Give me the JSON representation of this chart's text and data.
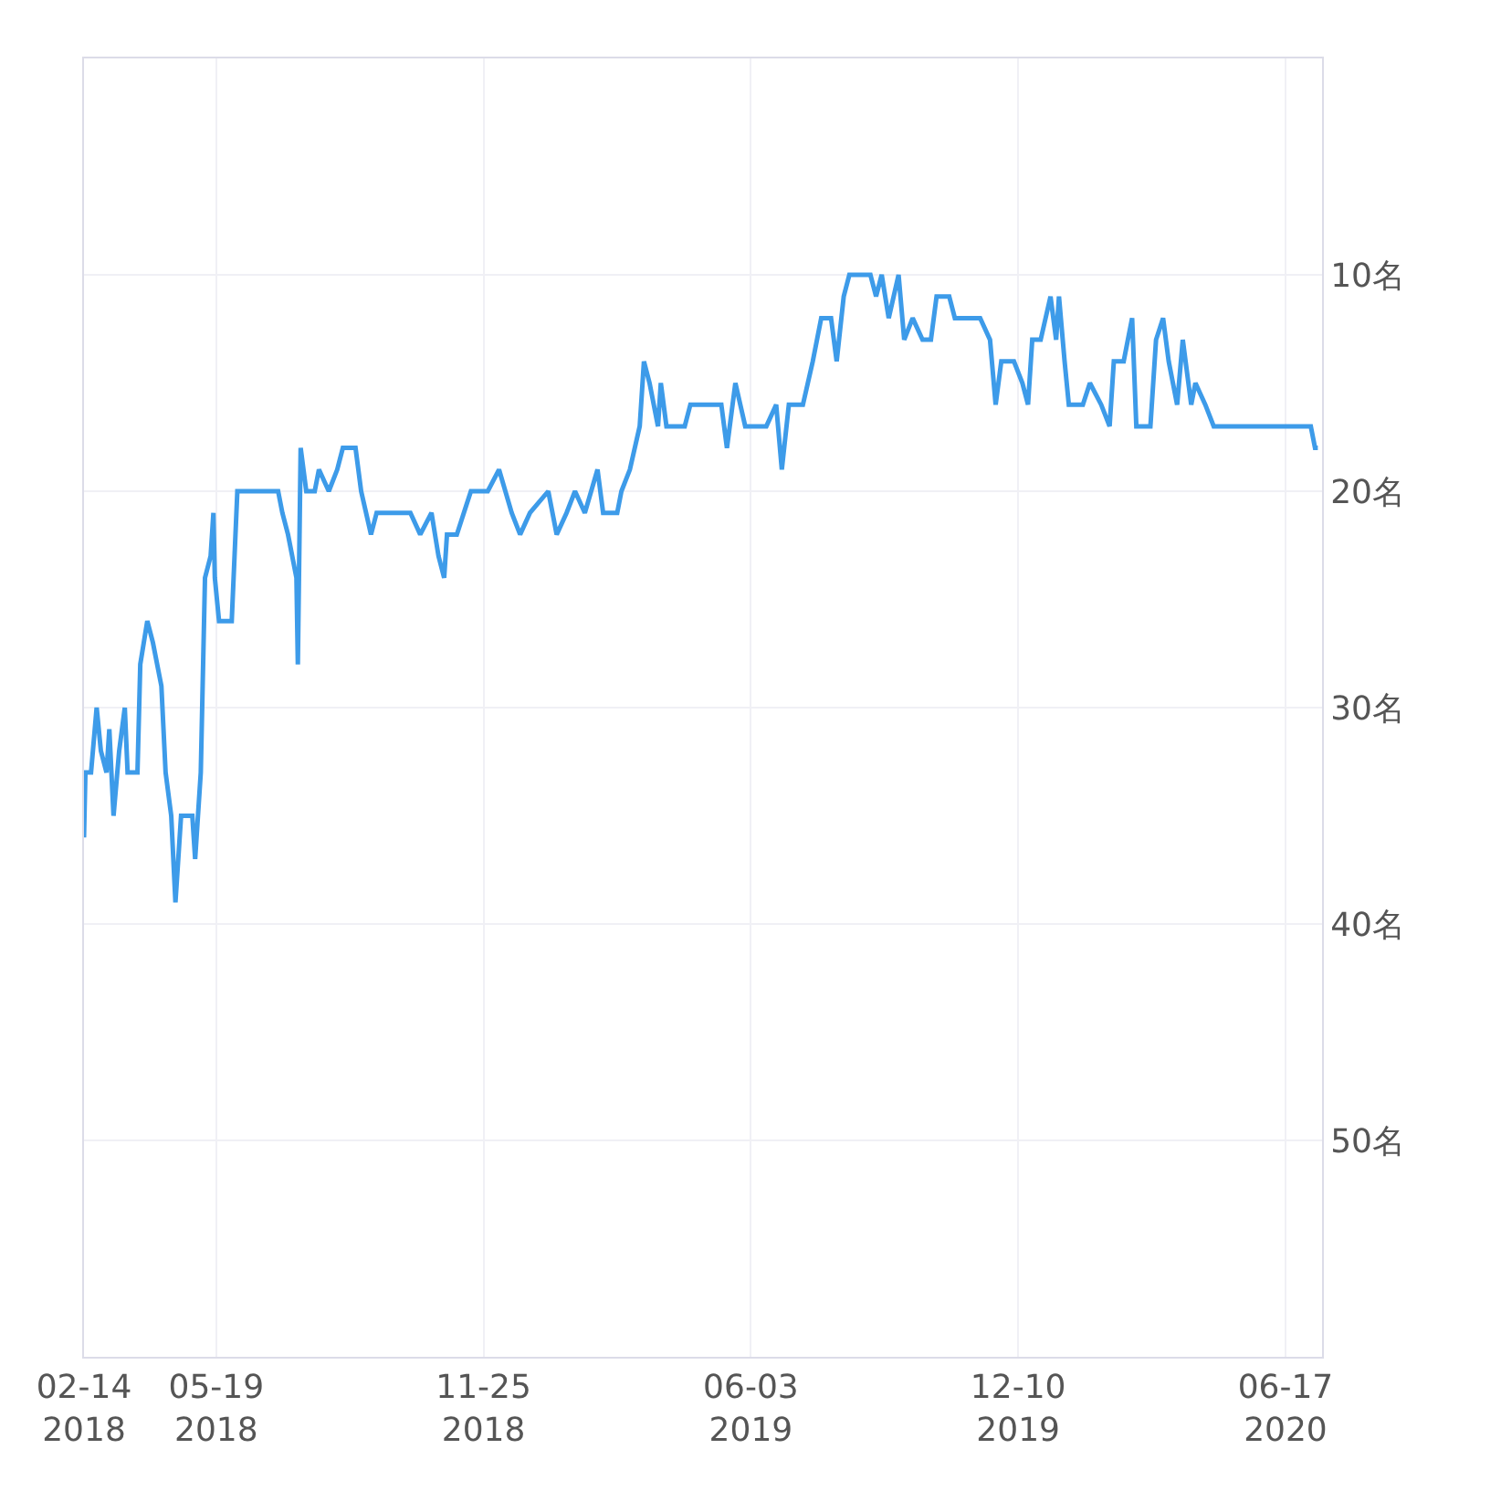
{
  "chart_data": {
    "type": "line",
    "grid": true,
    "legend": false,
    "marker": "none",
    "line_style": "solid",
    "xlim": [
      "2018-02-14",
      "2020-07-13"
    ],
    "xticks": [
      {
        "value": "2018-02-14",
        "label": "02-14\n2018"
      },
      {
        "value": "2018-05-19",
        "label": "05-19\n2018"
      },
      {
        "value": "2018-11-25",
        "label": "11-25\n2018"
      },
      {
        "value": "2019-06-03",
        "label": "06-03\n2019"
      },
      {
        "value": "2019-12-10",
        "label": "12-10\n2019"
      },
      {
        "value": "2020-06-17",
        "label": "06-17\n2020"
      }
    ],
    "ylim": [
      60,
      0
    ],
    "yticks": [
      {
        "value": 10,
        "label": "10名"
      },
      {
        "value": 20,
        "label": "20名"
      },
      {
        "value": 30,
        "label": "30名"
      },
      {
        "value": 40,
        "label": "40名"
      },
      {
        "value": 50,
        "label": "50名"
      }
    ],
    "x": [
      "2018-02-14",
      "2018-02-15",
      "2018-02-19",
      "2018-02-23",
      "2018-02-26",
      "2018-03-02",
      "2018-03-04",
      "2018-03-07",
      "2018-03-11",
      "2018-03-15",
      "2018-03-17",
      "2018-03-24",
      "2018-03-26",
      "2018-03-31",
      "2018-04-04",
      "2018-04-10",
      "2018-04-13",
      "2018-04-17",
      "2018-04-20",
      "2018-04-24",
      "2018-05-02",
      "2018-05-04",
      "2018-05-08",
      "2018-05-11",
      "2018-05-15",
      "2018-05-17",
      "2018-05-18",
      "2018-05-21",
      "2018-05-30",
      "2018-06-03",
      "2018-07-02",
      "2018-07-05",
      "2018-07-09",
      "2018-07-15",
      "2018-07-16",
      "2018-07-18",
      "2018-07-22",
      "2018-07-28",
      "2018-07-31",
      "2018-08-07",
      "2018-08-13",
      "2018-08-17",
      "2018-08-26",
      "2018-08-30",
      "2018-09-06",
      "2018-09-10",
      "2018-10-04",
      "2018-10-11",
      "2018-10-19",
      "2018-10-24",
      "2018-10-28",
      "2018-10-30",
      "2018-11-06",
      "2018-11-16",
      "2018-11-19",
      "2018-11-28",
      "2018-12-06",
      "2018-12-15",
      "2018-12-21",
      "2018-12-28",
      "2019-01-10",
      "2019-01-16",
      "2019-01-23",
      "2019-01-29",
      "2019-02-05",
      "2019-02-14",
      "2019-02-18",
      "2019-02-28",
      "2019-03-03",
      "2019-03-09",
      "2019-03-16",
      "2019-03-19",
      "2019-03-23",
      "2019-03-29",
      "2019-03-31",
      "2019-04-04",
      "2019-04-17",
      "2019-04-21",
      "2019-05-13",
      "2019-05-17",
      "2019-05-23",
      "2019-05-30",
      "2019-06-14",
      "2019-06-21",
      "2019-06-25",
      "2019-06-30",
      "2019-07-10",
      "2019-07-17",
      "2019-07-23",
      "2019-07-30",
      "2019-08-03",
      "2019-08-08",
      "2019-08-12",
      "2019-08-27",
      "2019-08-31",
      "2019-09-04",
      "2019-09-09",
      "2019-09-16",
      "2019-09-20",
      "2019-09-26",
      "2019-10-03",
      "2019-10-09",
      "2019-10-13",
      "2019-10-22",
      "2019-10-26",
      "2019-11-13",
      "2019-11-20",
      "2019-11-24",
      "2019-11-28",
      "2019-12-07",
      "2019-12-13",
      "2019-12-17",
      "2019-12-20",
      "2019-12-26",
      "2020-01-02",
      "2020-01-06",
      "2020-01-08",
      "2020-01-12",
      "2020-01-15",
      "2020-01-21",
      "2020-01-25",
      "2020-01-30",
      "2020-02-07",
      "2020-02-13",
      "2020-02-16",
      "2020-02-23",
      "2020-02-26",
      "2020-02-29",
      "2020-03-03",
      "2020-03-07",
      "2020-03-13",
      "2020-03-17",
      "2020-03-22",
      "2020-03-26",
      "2020-04-01",
      "2020-04-05",
      "2020-04-11",
      "2020-04-14",
      "2020-04-21",
      "2020-04-27",
      "2020-07-05",
      "2020-07-08",
      "2020-07-10"
    ],
    "series": [
      {
        "color": "#3d9be9",
        "values": [
          36,
          33,
          33,
          30,
          32,
          33,
          31,
          35,
          32,
          30,
          33,
          33,
          28,
          26,
          27,
          29,
          33,
          35,
          39,
          35,
          35,
          37,
          33,
          24,
          23,
          21,
          24,
          26,
          26,
          20,
          20,
          21,
          22,
          24,
          28,
          18,
          20,
          20,
          19,
          20,
          19,
          18,
          18,
          20,
          22,
          21,
          21,
          22,
          21,
          23,
          24,
          22,
          22,
          20,
          20,
          20,
          19,
          21,
          22,
          21,
          20,
          22,
          21,
          20,
          21,
          19,
          21,
          21,
          20,
          19,
          17,
          14,
          15,
          17,
          15,
          17,
          17,
          16,
          16,
          18,
          15,
          17,
          17,
          16,
          19,
          16,
          16,
          14,
          12,
          12,
          14,
          11,
          10,
          10,
          11,
          10,
          12,
          10,
          13,
          12,
          13,
          13,
          11,
          11,
          12,
          12,
          13,
          16,
          14,
          14,
          15,
          16,
          13,
          13,
          11,
          13,
          11,
          14,
          16,
          16,
          16,
          15,
          16,
          17,
          14,
          14,
          13,
          12,
          17,
          17,
          17,
          13,
          12,
          14,
          16,
          13,
          16,
          15,
          16,
          17,
          17,
          18,
          18
        ]
      }
    ]
  }
}
